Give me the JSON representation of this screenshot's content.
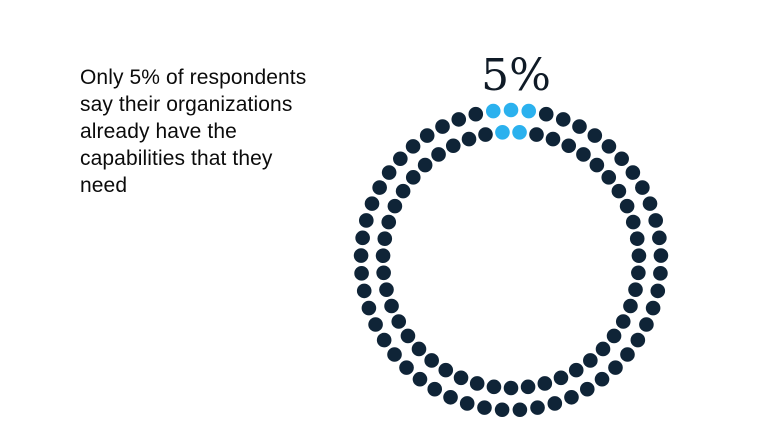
{
  "caption": "Only 5% of respondents say their organizations already have the capabilities that they need",
  "colors": {
    "highlight": "#2bb1ee",
    "base": "#0f2437"
  },
  "chart_data": {
    "type": "dot-ring",
    "value_label": "5%",
    "value_percent": 5,
    "total_dots": 100,
    "highlighted_dots": 5
  }
}
